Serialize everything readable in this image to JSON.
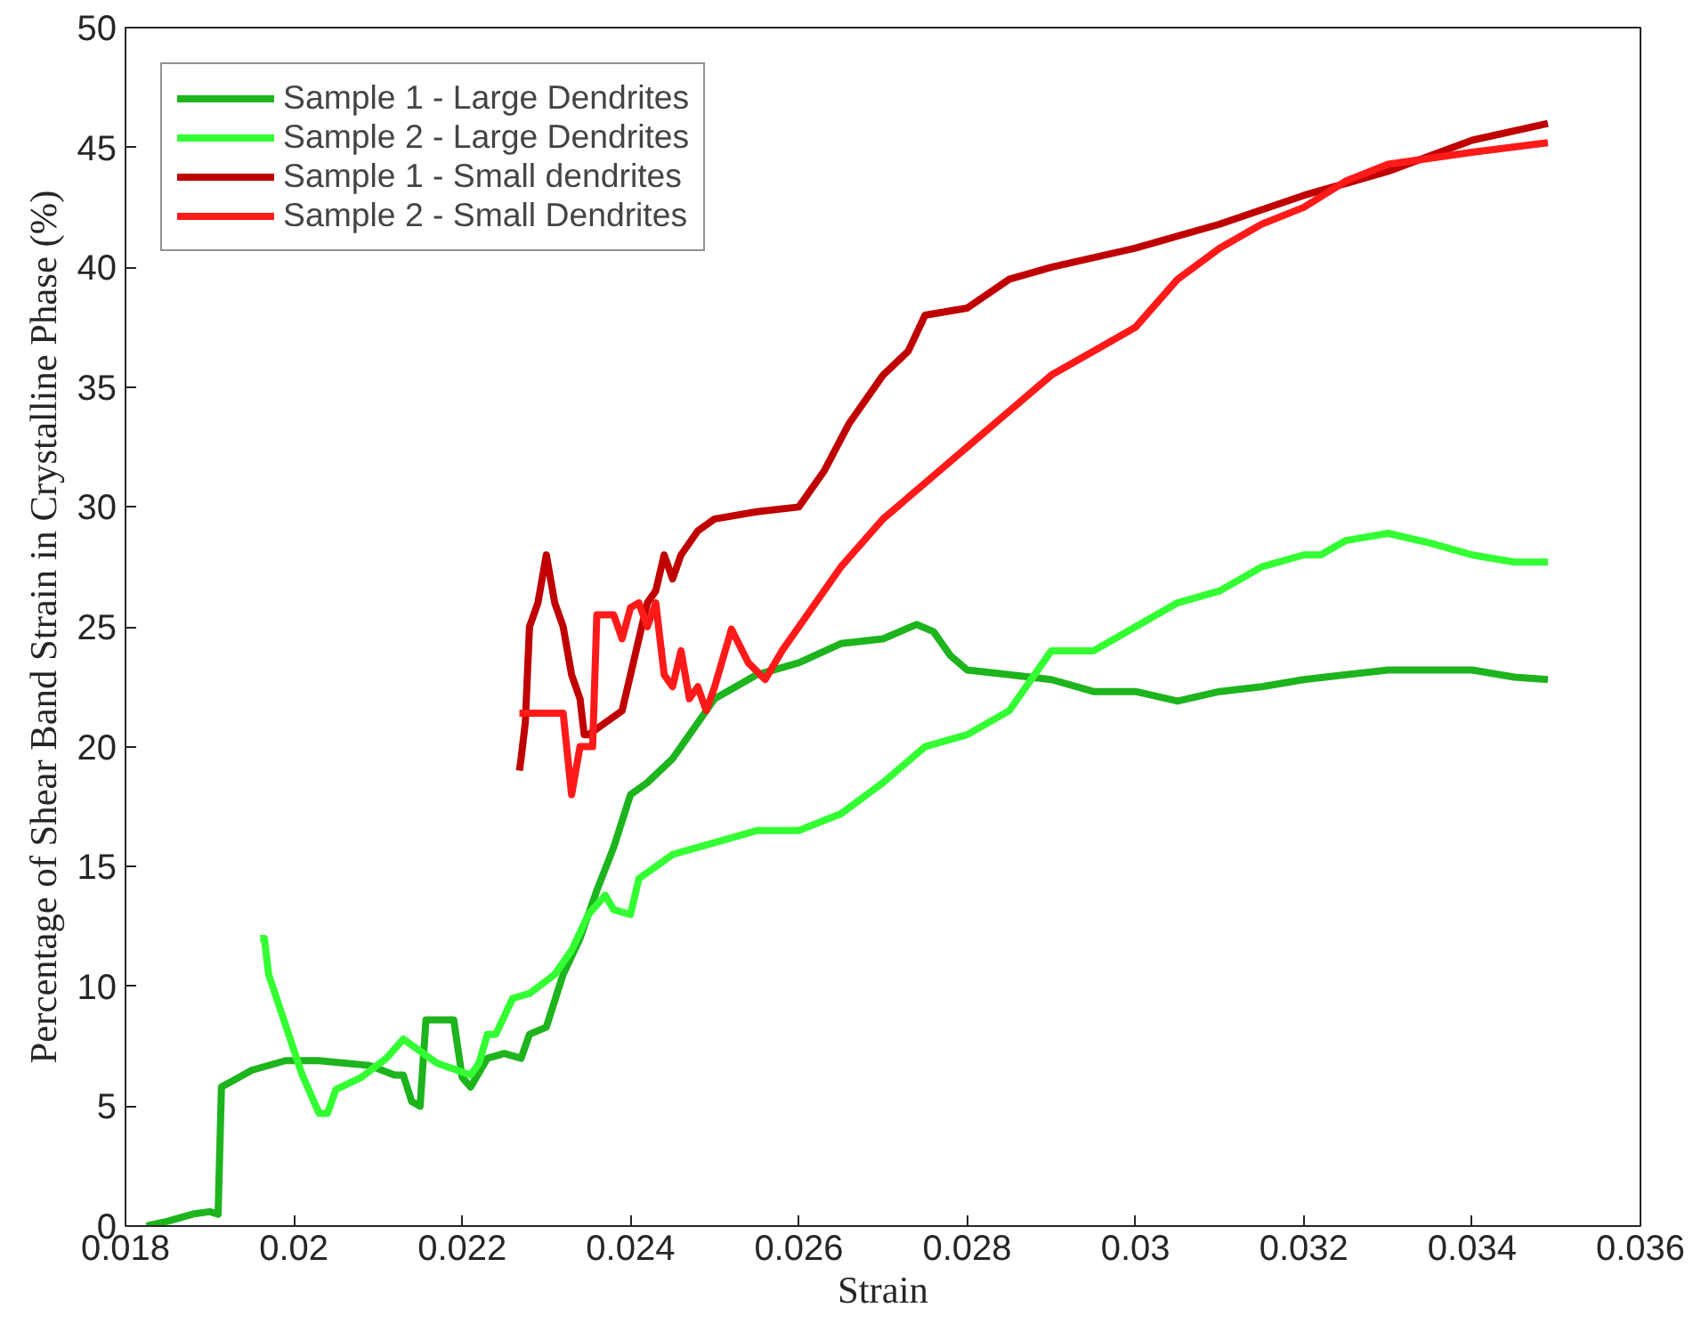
{
  "chart_data": {
    "type": "line",
    "xlabel": "Strain",
    "ylabel": "Percentage of Shear Band Strain in Crystalline Phase (%)",
    "xlim": [
      0.018,
      0.036
    ],
    "ylim": [
      0,
      50
    ],
    "xticks": [
      0.018,
      0.02,
      0.022,
      0.024,
      0.026,
      0.028,
      0.03,
      0.032,
      0.034,
      0.036
    ],
    "yticks": [
      0,
      5,
      10,
      15,
      20,
      25,
      30,
      35,
      40,
      45,
      50
    ],
    "grid": false,
    "legend": "top left",
    "marker": "none",
    "line_style": "solid",
    "series": [
      {
        "name": "Sample 1 - Large Dendrites",
        "color": "#1db41d",
        "x": [
          0.01825,
          0.0185,
          0.0188,
          0.019,
          0.0191,
          0.01914,
          0.0195,
          0.0199,
          0.0203,
          0.0206,
          0.0209,
          0.0212,
          0.0213,
          0.0214,
          0.0215,
          0.02157,
          0.0218,
          0.0219,
          0.022,
          0.0221,
          0.0223,
          0.0225,
          0.0227,
          0.0228,
          0.023,
          0.0232,
          0.0234,
          0.0236,
          0.0238,
          0.024,
          0.0242,
          0.0245,
          0.0248,
          0.025,
          0.0255,
          0.026,
          0.0265,
          0.027,
          0.0274,
          0.0276,
          0.0278,
          0.028,
          0.0285,
          0.029,
          0.0295,
          0.03,
          0.0305,
          0.031,
          0.0315,
          0.032,
          0.0325,
          0.033,
          0.0335,
          0.034,
          0.0345,
          0.0349
        ],
        "values": [
          0,
          0.2,
          0.5,
          0.6,
          0.5,
          5.8,
          6.5,
          6.9,
          6.9,
          6.8,
          6.7,
          6.3,
          6.3,
          5.2,
          5.0,
          8.6,
          8.6,
          8.6,
          6.2,
          5.8,
          7.0,
          7.2,
          7.0,
          8.0,
          8.3,
          10.5,
          12.0,
          14.0,
          15.8,
          18.0,
          18.5,
          19.5,
          21.0,
          22.0,
          23.0,
          23.5,
          24.3,
          24.5,
          25.1,
          24.8,
          23.8,
          23.2,
          23.0,
          22.8,
          22.3,
          22.3,
          21.9,
          22.3,
          22.5,
          22.8,
          23.0,
          23.2,
          23.2,
          23.2,
          22.9,
          22.8
        ]
      },
      {
        "name": "Sample 2 - Large Dendrites",
        "color": "#33ff33",
        "x": [
          0.0196,
          0.01965,
          0.0197,
          0.0201,
          0.0203,
          0.0204,
          0.0205,
          0.0208,
          0.0211,
          0.0213,
          0.0215,
          0.0217,
          0.0221,
          0.0222,
          0.0223,
          0.0224,
          0.0226,
          0.0228,
          0.0231,
          0.0233,
          0.0235,
          0.0237,
          0.0238,
          0.024,
          0.0241,
          0.0245,
          0.025,
          0.0255,
          0.026,
          0.0265,
          0.027,
          0.0275,
          0.028,
          0.0285,
          0.0288,
          0.029,
          0.0295,
          0.03,
          0.0305,
          0.031,
          0.0315,
          0.032,
          0.0322,
          0.0325,
          0.033,
          0.0335,
          0.034,
          0.0345,
          0.0349
        ],
        "values": [
          12.0,
          12.0,
          10.5,
          6.3,
          4.7,
          4.7,
          5.7,
          6.2,
          7.0,
          7.8,
          7.3,
          6.8,
          6.3,
          6.8,
          8.0,
          8.0,
          9.5,
          9.7,
          10.5,
          11.5,
          13.0,
          13.8,
          13.2,
          13.0,
          14.5,
          15.5,
          16.0,
          16.5,
          16.5,
          17.2,
          18.5,
          20.0,
          20.5,
          21.5,
          23.0,
          24.0,
          24.0,
          25.0,
          26.0,
          26.5,
          27.5,
          28.0,
          28.0,
          28.6,
          28.9,
          28.5,
          28.0,
          27.7,
          27.7
        ]
      },
      {
        "name": "Sample 1 - Small dendrites",
        "color": "#c00000",
        "x": [
          0.02268,
          0.0227,
          0.02275,
          0.0228,
          0.0229,
          0.023,
          0.0231,
          0.0232,
          0.0233,
          0.0234,
          0.02345,
          0.0235,
          0.0237,
          0.0239,
          0.024,
          0.0241,
          0.0242,
          0.0243,
          0.0244,
          0.0245,
          0.0246,
          0.0248,
          0.025,
          0.0255,
          0.026,
          0.0263,
          0.0266,
          0.027,
          0.0273,
          0.0275,
          0.028,
          0.0285,
          0.029,
          0.03,
          0.031,
          0.032,
          0.033,
          0.034,
          0.0349
        ],
        "values": [
          19.0,
          19.5,
          21.0,
          25.0,
          26.0,
          28.0,
          26.0,
          25.0,
          23.0,
          22.0,
          20.5,
          20.5,
          21.0,
          21.5,
          23.0,
          24.5,
          26.0,
          26.5,
          28.0,
          27.0,
          28.0,
          29.0,
          29.5,
          29.8,
          30.0,
          31.5,
          33.5,
          35.5,
          36.5,
          38.0,
          38.3,
          39.5,
          40.0,
          40.8,
          41.8,
          43.0,
          44.0,
          45.3,
          46.0
        ]
      },
      {
        "name": "Sample 2 - Small Dendrites",
        "color": "#ff1a1a",
        "x": [
          0.02268,
          0.0229,
          0.0232,
          0.0233,
          0.0234,
          0.02355,
          0.0236,
          0.0238,
          0.0239,
          0.024,
          0.0241,
          0.0242,
          0.0243,
          0.0244,
          0.0245,
          0.0246,
          0.0247,
          0.0248,
          0.0249,
          0.025,
          0.0252,
          0.0254,
          0.0256,
          0.0258,
          0.026,
          0.0265,
          0.027,
          0.0275,
          0.028,
          0.0285,
          0.029,
          0.0295,
          0.03,
          0.0305,
          0.031,
          0.0315,
          0.032,
          0.0325,
          0.033,
          0.034,
          0.0349
        ],
        "values": [
          21.4,
          21.4,
          21.4,
          18.0,
          20.0,
          20.0,
          25.5,
          25.5,
          24.5,
          25.8,
          26.0,
          25.0,
          26.0,
          23.0,
          22.5,
          24.0,
          22.0,
          22.5,
          21.5,
          22.5,
          24.9,
          23.5,
          22.8,
          24.0,
          25.0,
          27.5,
          29.5,
          31.0,
          32.5,
          34.0,
          35.5,
          36.5,
          37.5,
          39.5,
          40.8,
          41.8,
          42.5,
          43.6,
          44.3,
          44.8,
          45.2
        ]
      }
    ]
  }
}
